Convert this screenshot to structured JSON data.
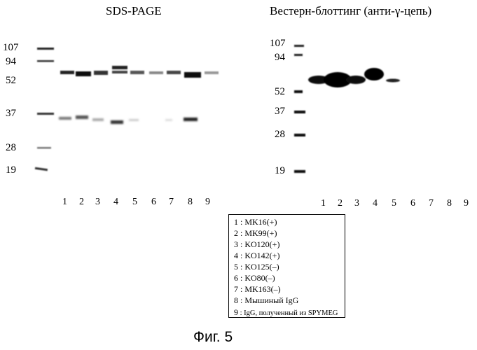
{
  "panels": {
    "sds": {
      "title": "SDS-PAGE",
      "markers": [
        "107",
        "94",
        "52",
        "37",
        "28",
        "19"
      ],
      "lanes": [
        "1",
        "2",
        "3",
        "4",
        "5",
        "6",
        "7",
        "8",
        "9"
      ]
    },
    "western": {
      "title": "Вестерн-блоттинг (анти-γ-цепь)",
      "markers": [
        "107",
        "94",
        "52",
        "37",
        "28",
        "19"
      ],
      "lanes": [
        "1",
        "2",
        "3",
        "4",
        "5",
        "6",
        "7",
        "8",
        "9"
      ]
    }
  },
  "legend": [
    {
      "num": "1",
      "text": "MK16(+)"
    },
    {
      "num": "2",
      "text": "MK99(+)"
    },
    {
      "num": "3",
      "text": "KO120(+)"
    },
    {
      "num": "4",
      "text": "KO142(+)"
    },
    {
      "num": "5",
      "text": "KO125(–)"
    },
    {
      "num": "6",
      "text": "KO80(–)"
    },
    {
      "num": "7",
      "text": "MK163(–)"
    },
    {
      "num": "8",
      "text": "Мышиный IgG"
    },
    {
      "num": "9",
      "text": "IgG, полученный из SPYMEG"
    }
  ],
  "caption": "Фиг. 5"
}
